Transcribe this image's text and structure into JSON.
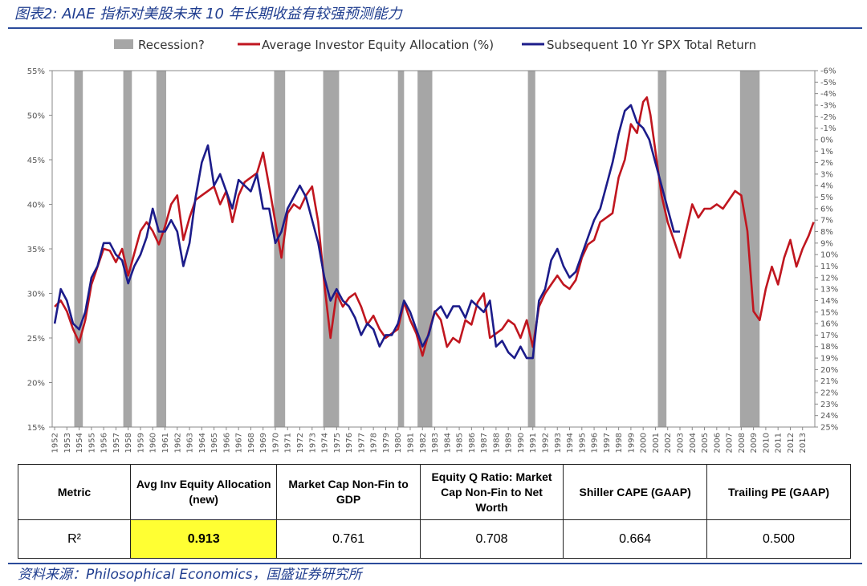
{
  "figure_title": "图表2: AIAE 指标对美股未来 10 年长期收益有较强预测能力",
  "source": "资料来源：Philosophical Economics，国盛证券研究所",
  "chart_data": {
    "type": "line",
    "legend": [
      {
        "key": "recession",
        "label": "Recession?",
        "color": "#a6a6a6"
      },
      {
        "key": "aiae",
        "label": "Average Investor Equity Allocation (%)",
        "color": "#c0161f"
      },
      {
        "key": "spx",
        "label": "Subsequent 10 Yr SPX Total Return",
        "color": "#1c1c8a"
      }
    ],
    "x_range": [
      1951.8,
      2014.0
    ],
    "x_ticks": [
      "1952",
      "1953",
      "1954",
      "1955",
      "1956",
      "1957",
      "1958",
      "1959",
      "1960",
      "1961",
      "1962",
      "1963",
      "1964",
      "1965",
      "1966",
      "1967",
      "1968",
      "1969",
      "1970",
      "1971",
      "1972",
      "1973",
      "1974",
      "1975",
      "1976",
      "1977",
      "1978",
      "1979",
      "1980",
      "1981",
      "1982",
      "1983",
      "1984",
      "1985",
      "1986",
      "1987",
      "1988",
      "1989",
      "1990",
      "1991",
      "1992",
      "1993",
      "1994",
      "1995",
      "1996",
      "1997",
      "1998",
      "1999",
      "2000",
      "2001",
      "2002",
      "2003",
      "2004",
      "2005",
      "2006",
      "2007",
      "2008",
      "2009",
      "2010",
      "2011",
      "2012",
      "2013"
    ],
    "y_left": {
      "min": 15,
      "max": 55,
      "ticks": [
        "15%",
        "20%",
        "25%",
        "30%",
        "35%",
        "40%",
        "45%",
        "50%",
        "55%"
      ]
    },
    "y_right": {
      "top": -6,
      "bottom": 25,
      "ticks": [
        "-6%",
        "-5%",
        "-4%",
        "-3%",
        "-2%",
        "-1%",
        "0%",
        "1%",
        "2%",
        "3%",
        "4%",
        "5%",
        "6%",
        "7%",
        "8%",
        "9%",
        "10%",
        "11%",
        "12%",
        "13%",
        "14%",
        "15%",
        "16%",
        "17%",
        "18%",
        "19%",
        "20%",
        "21%",
        "22%",
        "23%",
        "24%",
        "25%"
      ]
    },
    "recessions": [
      [
        1953.6,
        1954.3
      ],
      [
        1957.6,
        1958.3
      ],
      [
        1960.3,
        1961.1
      ],
      [
        1969.9,
        1970.8
      ],
      [
        1973.9,
        1975.2
      ],
      [
        1980.0,
        1980.5
      ],
      [
        1981.6,
        1982.8
      ],
      [
        1990.6,
        1991.2
      ],
      [
        2001.2,
        2001.9
      ],
      [
        2007.9,
        2009.5
      ]
    ],
    "series": [
      {
        "key": "aiae",
        "name": "Average Investor Equity Allocation (%)",
        "axis": "left",
        "x": [
          1952.0,
          1952.5,
          1953.0,
          1953.5,
          1954.0,
          1954.5,
          1955.0,
          1955.5,
          1956.0,
          1956.5,
          1957.0,
          1957.5,
          1958.0,
          1958.5,
          1959.0,
          1959.5,
          1960.0,
          1960.5,
          1961.0,
          1961.5,
          1962.0,
          1962.5,
          1963.0,
          1963.5,
          1964.0,
          1964.5,
          1965.0,
          1965.5,
          1966.0,
          1966.5,
          1967.0,
          1967.5,
          1968.0,
          1968.5,
          1969.0,
          1969.5,
          1970.0,
          1970.5,
          1971.0,
          1971.5,
          1972.0,
          1972.5,
          1973.0,
          1973.5,
          1974.0,
          1974.5,
          1975.0,
          1975.5,
          1976.0,
          1976.5,
          1977.0,
          1977.5,
          1978.0,
          1978.5,
          1979.0,
          1979.5,
          1980.0,
          1980.5,
          1981.0,
          1981.5,
          1982.0,
          1982.5,
          1983.0,
          1983.5,
          1984.0,
          1984.5,
          1985.0,
          1985.5,
          1986.0,
          1986.5,
          1987.0,
          1987.5,
          1988.0,
          1988.5,
          1989.0,
          1989.5,
          1990.0,
          1990.5,
          1991.0,
          1991.5,
          1992.0,
          1992.5,
          1993.0,
          1993.5,
          1994.0,
          1994.5,
          1995.0,
          1995.5,
          1996.0,
          1996.5,
          1997.0,
          1997.5,
          1998.0,
          1998.5,
          1999.0,
          1999.5,
          2000.0,
          2000.3,
          2000.6,
          2001.0,
          2001.5,
          2002.0,
          2002.5,
          2003.0,
          2003.5,
          2004.0,
          2004.5,
          2005.0,
          2005.5,
          2006.0,
          2006.5,
          2007.0,
          2007.5,
          2008.0,
          2008.5,
          2009.0,
          2009.5,
          2010.0,
          2010.5,
          2011.0,
          2011.5,
          2012.0,
          2012.5,
          2013.0,
          2013.5,
          2013.9
        ],
        "values": [
          28.5,
          29.2,
          28.0,
          26.0,
          24.5,
          27.0,
          31.0,
          33.0,
          35.0,
          34.8,
          33.5,
          35.0,
          32.0,
          34.5,
          37.0,
          38.0,
          37.0,
          35.5,
          37.5,
          40.0,
          41.0,
          36.0,
          38.5,
          40.5,
          41.0,
          41.5,
          42.0,
          40.0,
          41.5,
          38.0,
          41.0,
          42.5,
          43.0,
          43.5,
          45.8,
          42.0,
          38.0,
          34.0,
          39.0,
          40.0,
          39.5,
          41.0,
          42.0,
          38.0,
          31.0,
          25.0,
          30.0,
          28.5,
          29.5,
          30.0,
          28.5,
          26.5,
          27.5,
          26.0,
          25.0,
          25.5,
          26.0,
          29.0,
          27.0,
          25.5,
          23.0,
          25.5,
          28.0,
          27.0,
          24.0,
          25.0,
          24.5,
          27.0,
          26.5,
          29.0,
          30.0,
          25.0,
          25.5,
          26.0,
          27.0,
          26.5,
          25.0,
          27.0,
          24.0,
          28.5,
          30.0,
          31.0,
          32.0,
          31.0,
          30.5,
          31.5,
          34.0,
          35.5,
          36.0,
          38.0,
          38.5,
          39.0,
          43.0,
          45.0,
          49.0,
          48.0,
          51.5,
          52.0,
          50.0,
          46.0,
          41.0,
          38.0,
          36.0,
          34.0,
          37.0,
          40.0,
          38.5,
          39.5,
          39.5,
          40.0,
          39.5,
          40.5,
          41.5,
          41.0,
          37.0,
          28.0,
          27.0,
          30.5,
          33.0,
          31.0,
          34.0,
          36.0,
          33.0,
          35.0,
          36.5,
          38.0
        ]
      },
      {
        "key": "spx",
        "name": "Subsequent 10 Yr SPX Total Return",
        "axis": "right",
        "x": [
          1952.0,
          1952.5,
          1953.0,
          1953.5,
          1954.0,
          1954.5,
          1955.0,
          1955.5,
          1956.0,
          1956.5,
          1957.0,
          1957.5,
          1958.0,
          1958.5,
          1959.0,
          1959.5,
          1960.0,
          1960.5,
          1961.0,
          1961.5,
          1962.0,
          1962.5,
          1963.0,
          1963.5,
          1964.0,
          1964.5,
          1965.0,
          1965.5,
          1966.0,
          1966.5,
          1967.0,
          1967.5,
          1968.0,
          1968.5,
          1969.0,
          1969.5,
          1970.0,
          1970.5,
          1971.0,
          1971.5,
          1972.0,
          1972.5,
          1973.0,
          1973.5,
          1974.0,
          1974.5,
          1975.0,
          1975.5,
          1976.0,
          1976.5,
          1977.0,
          1977.5,
          1978.0,
          1978.5,
          1979.0,
          1979.5,
          1980.0,
          1980.5,
          1981.0,
          1981.5,
          1982.0,
          1982.5,
          1983.0,
          1983.5,
          1984.0,
          1984.5,
          1985.0,
          1985.5,
          1986.0,
          1986.5,
          1987.0,
          1987.5,
          1988.0,
          1988.5,
          1989.0,
          1989.5,
          1990.0,
          1990.5,
          1991.0,
          1991.5,
          1992.0,
          1992.5,
          1993.0,
          1993.5,
          1994.0,
          1994.5,
          1995.0,
          1995.5,
          1996.0,
          1996.5,
          1997.0,
          1997.5,
          1998.0,
          1998.5,
          1999.0,
          1999.5,
          2000.0,
          2000.5,
          2001.0,
          2001.5,
          2002.0,
          2002.5,
          2003.0
        ],
        "values": [
          16.0,
          13.0,
          14.0,
          16.0,
          16.5,
          15.0,
          12.0,
          11.0,
          9.0,
          9.0,
          10.0,
          10.5,
          12.5,
          11.0,
          10.0,
          8.5,
          6.0,
          8.0,
          8.0,
          7.0,
          8.0,
          11.0,
          9.0,
          5.0,
          2.0,
          0.5,
          4.0,
          3.0,
          4.5,
          6.0,
          3.5,
          4.0,
          4.5,
          3.0,
          6.0,
          6.0,
          9.0,
          8.0,
          6.0,
          5.0,
          4.0,
          5.0,
          7.0,
          9.0,
          12.0,
          14.0,
          13.0,
          14.0,
          14.5,
          15.5,
          17.0,
          16.0,
          16.5,
          18.0,
          17.0,
          17.0,
          16.0,
          14.0,
          15.0,
          16.5,
          18.0,
          17.0,
          15.0,
          14.5,
          15.5,
          14.5,
          14.5,
          15.5,
          14.0,
          14.5,
          15.0,
          14.0,
          18.0,
          17.5,
          18.5,
          19.0,
          18.0,
          19.0,
          19.0,
          14.0,
          13.0,
          10.5,
          9.5,
          11.0,
          12.0,
          11.5,
          10.0,
          8.5,
          7.0,
          6.0,
          4.0,
          2.0,
          -0.5,
          -2.5,
          -3.0,
          -1.5,
          -1.0,
          0.0,
          2.0,
          4.0,
          6.0,
          8.0,
          8.0
        ]
      }
    ]
  },
  "table": {
    "headers": [
      "Metric",
      "Avg Inv Equity Allocation (new)",
      "Market Cap Non-Fin to GDP",
      "Equity Q Ratio: Market Cap Non-Fin to Net Worth",
      "Shiller CAPE (GAAP)",
      "Trailing PE (GAAP)"
    ],
    "row_label": "R²",
    "values": [
      "0.913",
      "0.761",
      "0.708",
      "0.664",
      "0.500"
    ]
  }
}
